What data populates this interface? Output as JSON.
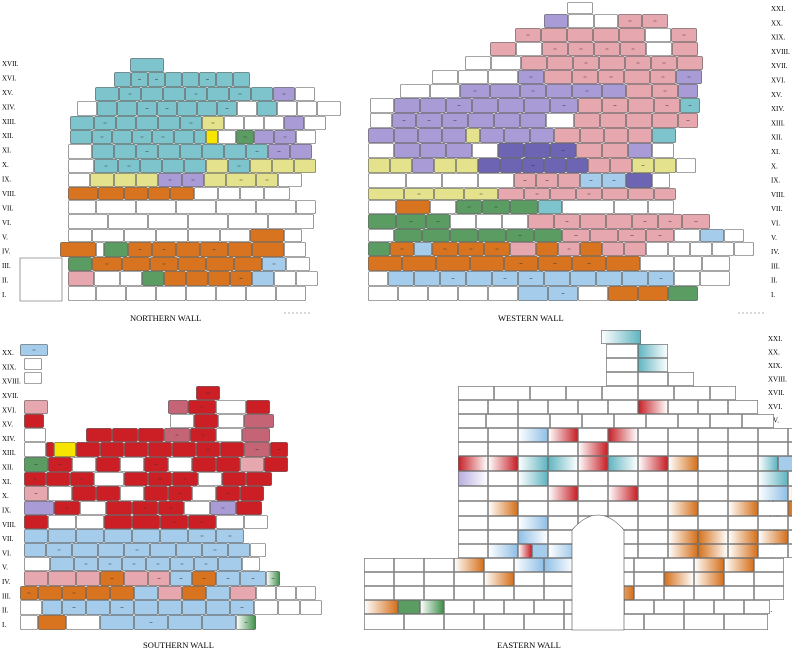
{
  "palette": {
    "teal": "#7ec4cc",
    "lilac": "#a99bd6",
    "yellow": "#e4e28c",
    "bright_yellow": "#f7e500",
    "orange": "#d8741f",
    "green": "#5a9c62",
    "pink": "#e7a7ae",
    "lightblue": "#a6cceb",
    "red": "#cc1f25",
    "darkpink": "#c46474",
    "white": "#ffffff",
    "outline": "#4d4d4d"
  },
  "walls": {
    "northern": {
      "title": "NORTHERN WALL",
      "rows": [
        "XVII.",
        "XVI.",
        "XV.",
        "XIV.",
        "XIII.",
        "XII.",
        "XI.",
        "X.",
        "IX.",
        "VIII.",
        "VII.",
        "VI.",
        "V.",
        "IV.",
        "III.",
        "II.",
        "I."
      ]
    },
    "western": {
      "title": "WESTERN WALL",
      "rows": [
        "XXI.",
        "XX.",
        "XIX.",
        "XVIII.",
        "XVII.",
        "XVI.",
        "XV.",
        "XIV.",
        "XIII.",
        "XII.",
        "XI.",
        "X.",
        "IX.",
        "VIII.",
        "VII.",
        "VI.",
        "V.",
        "IV.",
        "III.",
        "II.",
        "I."
      ]
    },
    "southern": {
      "title": "SOUTHERN WALL",
      "rows": [
        "XX.",
        "XIX.",
        "XVIII.",
        "XVII.",
        "XVI.",
        "XV.",
        "XIV.",
        "XIII.",
        "XII.",
        "XI.",
        "X.",
        "IX.",
        "VIII.",
        "VII.",
        "VI.",
        "V.",
        "IV.",
        "III.",
        "II.",
        "I."
      ]
    },
    "eastern": {
      "title": "EASTERN WALL",
      "rows": [
        "XXI.",
        "XX.",
        "XIX.",
        "XVIII.",
        "XVII.",
        "XVI.",
        "XV.",
        "XIV.",
        "XIII.",
        "XII.",
        "XI.",
        "X.",
        "IX.",
        "VIII.",
        "VII.",
        "VI.",
        "V.",
        "IV.",
        "III.",
        "II.",
        "I."
      ]
    }
  }
}
